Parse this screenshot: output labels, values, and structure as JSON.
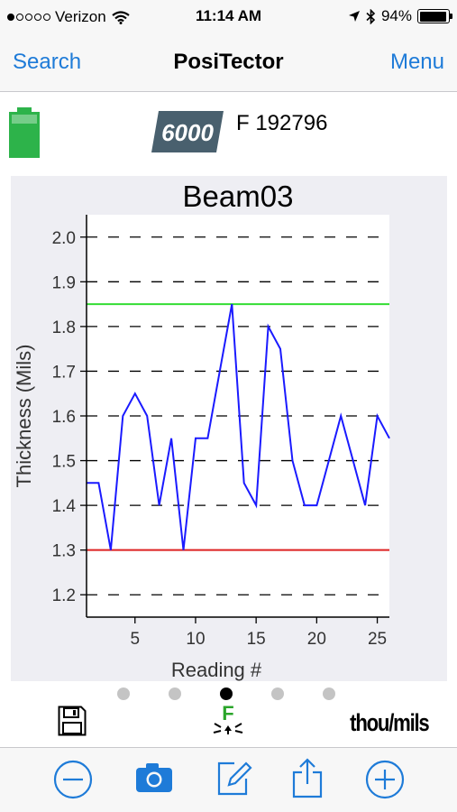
{
  "status_bar": {
    "carrier": "Verizon",
    "time": "11:14 AM",
    "battery_percent": "94%",
    "battery_level": 0.94
  },
  "nav": {
    "back_label": "Search",
    "title": "PosiTector",
    "menu_label": "Menu",
    "accent_color": "#1e7bd8"
  },
  "device": {
    "model_badge": "6000",
    "serial": "F 192796",
    "battery_color": "#2db34a"
  },
  "chart_data": {
    "type": "line",
    "title": "Beam03",
    "xlabel": "Reading #",
    "ylabel": "Thickness (Mils)",
    "xlim": [
      1,
      26
    ],
    "ylim": [
      1.15,
      2.05
    ],
    "xticks": [
      5,
      10,
      15,
      20,
      25
    ],
    "yticks": [
      1.2,
      1.3,
      1.4,
      1.5,
      1.6,
      1.7,
      1.8,
      1.9,
      2.0
    ],
    "grid": "horizontal-dashed",
    "series": [
      {
        "color": "#1a1aff",
        "x": [
          1,
          2,
          3,
          4,
          5,
          6,
          7,
          8,
          9,
          10,
          11,
          12,
          13,
          14,
          15,
          16,
          17,
          18,
          19,
          20,
          21,
          22,
          23,
          24,
          25,
          26
        ],
        "y": [
          1.45,
          1.45,
          1.3,
          1.6,
          1.65,
          1.6,
          1.4,
          1.55,
          1.3,
          1.55,
          1.55,
          1.7,
          1.85,
          1.45,
          1.4,
          1.8,
          1.75,
          1.5,
          1.4,
          1.4,
          1.5,
          1.6,
          1.5,
          1.4,
          1.6,
          1.55
        ]
      }
    ],
    "limits": [
      {
        "kind": "high",
        "value": 1.85,
        "color": "#33dd33"
      },
      {
        "kind": "low",
        "value": 1.3,
        "color": "#dd2222"
      }
    ]
  },
  "pager": {
    "count": 5,
    "active": 2
  },
  "tools": {
    "feet_letter": "F",
    "units": "thou/mils"
  },
  "toolbar": {
    "icons": [
      "minus-circle-icon",
      "camera-icon",
      "compose-icon",
      "share-icon",
      "plus-circle-icon"
    ]
  }
}
